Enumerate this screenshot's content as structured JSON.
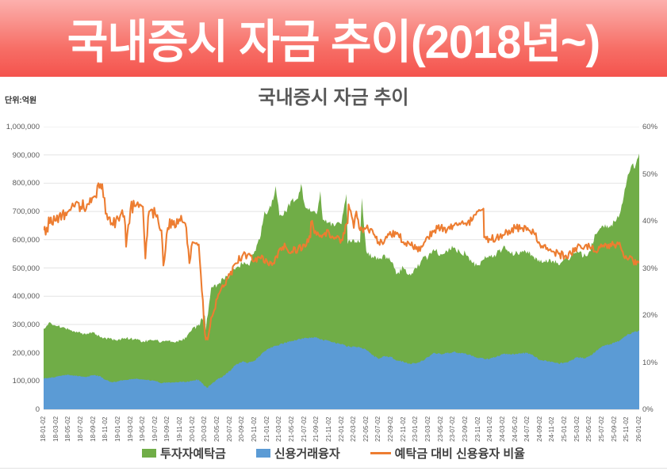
{
  "banner": {
    "title": "국내증시 자금 추이(2018년~)"
  },
  "chart_data": {
    "type": "area",
    "title": "국내증시 자금 추이",
    "unit_label": "단위:억원",
    "value_unit": "억원",
    "value_scale": 1000,
    "grid": true,
    "legend_position": "bottom",
    "left_axis": {
      "min": 0,
      "max": 1000000,
      "step": 100000,
      "tick_labels": [
        "1,000,000",
        "900,000",
        "800,000",
        "700,000",
        "600,000",
        "500,000",
        "400,000",
        "300,000",
        "200,000",
        "100,000",
        "0"
      ]
    },
    "right_axis": {
      "min": 0,
      "max": 60,
      "step": 10,
      "tick_labels": [
        "60%",
        "50%",
        "40%",
        "30%",
        "20%",
        "10%",
        "0%"
      ]
    },
    "x_range": {
      "start": "18-01-02",
      "end": "26-01-02",
      "months": 97
    },
    "x_tick_labels": [
      "18-01-02",
      "18-03-02",
      "18-05-02",
      "18-07-02",
      "18-09-02",
      "18-11-02",
      "19-01-02",
      "19-03-02",
      "19-05-02",
      "19-07-02",
      "19-09-02",
      "19-11-02",
      "20-01-02",
      "20-03-02",
      "20-05-02",
      "20-07-02",
      "20-09-02",
      "20-11-02",
      "21-01-02",
      "21-03-02",
      "21-05-02",
      "21-07-02",
      "21-09-02",
      "21-11-02",
      "22-01-02",
      "22-03-02",
      "22-05-02",
      "22-07-02",
      "22-09-02",
      "22-11-02",
      "23-01-02",
      "23-03-02",
      "23-05-02",
      "23-07-02",
      "23-09-02",
      "23-11-02",
      "24-01-02",
      "24-03-02",
      "24-05-02",
      "24-07-02",
      "24-09-02",
      "24-11-02",
      "25-01-02",
      "25-03-02",
      "25-05-02",
      "25-07-02",
      "25-09-02",
      "25-11-02",
      "26-01-02"
    ],
    "series": [
      {
        "name": "투자자예탁금",
        "type": "area",
        "axis": "left",
        "color": "#70AD47",
        "noise_early": 5,
        "noise_late": 11,
        "values": [
          285,
          308,
          295,
          290,
          282,
          275,
          268,
          268,
          272,
          258,
          252,
          248,
          246,
          252,
          250,
          246,
          240,
          244,
          246,
          238,
          242,
          238,
          244,
          252,
          288,
          300,
          330,
          430,
          442,
          460,
          475,
          500,
          515,
          510,
          560,
          615,
          690,
          740,
          685,
          700,
          740,
          745,
          730,
          700,
          690,
          670,
          660,
          650,
          655,
          585,
          600,
          590,
          560,
          540,
          530,
          545,
          520,
          480,
          500,
          480,
          500,
          530,
          540,
          560,
          550,
          560,
          570,
          560,
          550,
          520,
          510,
          530,
          540,
          550,
          570,
          560,
          550,
          555,
          560,
          540,
          520,
          530,
          525,
          510,
          530,
          540,
          560,
          540,
          560,
          620,
          650,
          640,
          665,
          700,
          810,
          870,
          905
        ],
        "spikes": [
          {
            "x": 26.15,
            "v": 280
          },
          {
            "x": 35.6,
            "v": 700
          },
          {
            "x": 37.4,
            "v": 790
          },
          {
            "x": 41.5,
            "v": 798
          },
          {
            "x": 44.6,
            "v": 772
          },
          {
            "x": 48.8,
            "v": 762
          },
          {
            "x": 51.3,
            "v": 748
          },
          {
            "x": 95.3,
            "v": 852
          }
        ]
      },
      {
        "name": "신용거래융자",
        "type": "area",
        "axis": "left",
        "color": "#5B9BD5",
        "noise_early": 2,
        "noise_late": 3,
        "values": [
          108,
          112,
          115,
          120,
          122,
          120,
          116,
          115,
          120,
          118,
          104,
          96,
          99,
          103,
          106,
          109,
          105,
          103,
          100,
          92,
          94,
          95,
          98,
          96,
          101,
          105,
          82,
          88,
          105,
          120,
          135,
          158,
          168,
          165,
          172,
          192,
          212,
          222,
          228,
          236,
          242,
          248,
          252,
          252,
          255,
          245,
          242,
          235,
          230,
          222,
          222,
          218,
          210,
          192,
          178,
          188,
          185,
          172,
          168,
          162,
          162,
          172,
          185,
          200,
          195,
          198,
          202,
          200,
          198,
          188,
          182,
          178,
          180,
          186,
          195,
          196,
          195,
          198,
          200,
          188,
          175,
          172,
          168,
          162,
          165,
          172,
          185,
          180,
          188,
          205,
          222,
          228,
          235,
          245,
          262,
          272,
          278
        ],
        "spikes": [
          {
            "x": 26.3,
            "v": 76
          }
        ]
      },
      {
        "name": "예탁금 대비 신용융자 비율",
        "type": "line",
        "axis": "right",
        "color": "#ED7D31",
        "noise_early": 1.5,
        "noise_late": 0.85,
        "values": [
          38,
          39.5,
          40,
          41.5,
          42,
          43,
          43,
          43.5,
          45,
          47,
          41.5,
          39.5,
          40.5,
          41,
          42.5,
          43.5,
          43,
          42,
          41.5,
          38,
          38.5,
          40,
          40,
          38.5,
          35.5,
          35,
          16,
          19.5,
          23.5,
          26,
          28.5,
          31,
          32.5,
          33,
          31.5,
          32,
          31.5,
          31,
          34,
          34.5,
          33.5,
          34,
          35,
          36.5,
          37,
          37,
          37.5,
          36.5,
          36,
          39.5,
          38.5,
          38,
          38.5,
          38,
          35.5,
          36,
          37,
          37.5,
          35.5,
          35,
          34,
          34.5,
          36.5,
          38,
          38.5,
          38,
          39,
          39.5,
          39.5,
          40,
          42,
          36.5,
          36,
          36.5,
          37,
          38,
          38.5,
          38.5,
          38.5,
          37.5,
          35,
          34,
          33.5,
          33,
          32.5,
          33,
          34.5,
          34,
          34.5,
          33.5,
          34.5,
          35,
          35,
          34.5,
          32,
          31.5,
          31
        ],
        "spikes": [
          {
            "x": 9.45,
            "v": 47.8
          },
          {
            "x": 13.3,
            "v": 34.5
          },
          {
            "x": 16.4,
            "v": 32
          },
          {
            "x": 19.3,
            "v": 30.5
          },
          {
            "x": 23.5,
            "v": 31
          },
          {
            "x": 26.45,
            "v": 14.8
          },
          {
            "x": 43.1,
            "v": 39.8
          },
          {
            "x": 49.15,
            "v": 43.5
          },
          {
            "x": 50.4,
            "v": 42
          },
          {
            "x": 70.9,
            "v": 42.6
          }
        ]
      }
    ],
    "legend": [
      {
        "label": "투자자예탁금",
        "color": "#70AD47",
        "marker": "square"
      },
      {
        "label": "신용거래융자",
        "color": "#5B9BD5",
        "marker": "square"
      },
      {
        "label": "예탁금 대비 신용융자 비율",
        "color": "#ED7D31",
        "marker": "line"
      }
    ],
    "colors": {
      "grid": "#e4e4e4",
      "axis": "#bfbfbf",
      "tick_text": "#595959"
    }
  }
}
